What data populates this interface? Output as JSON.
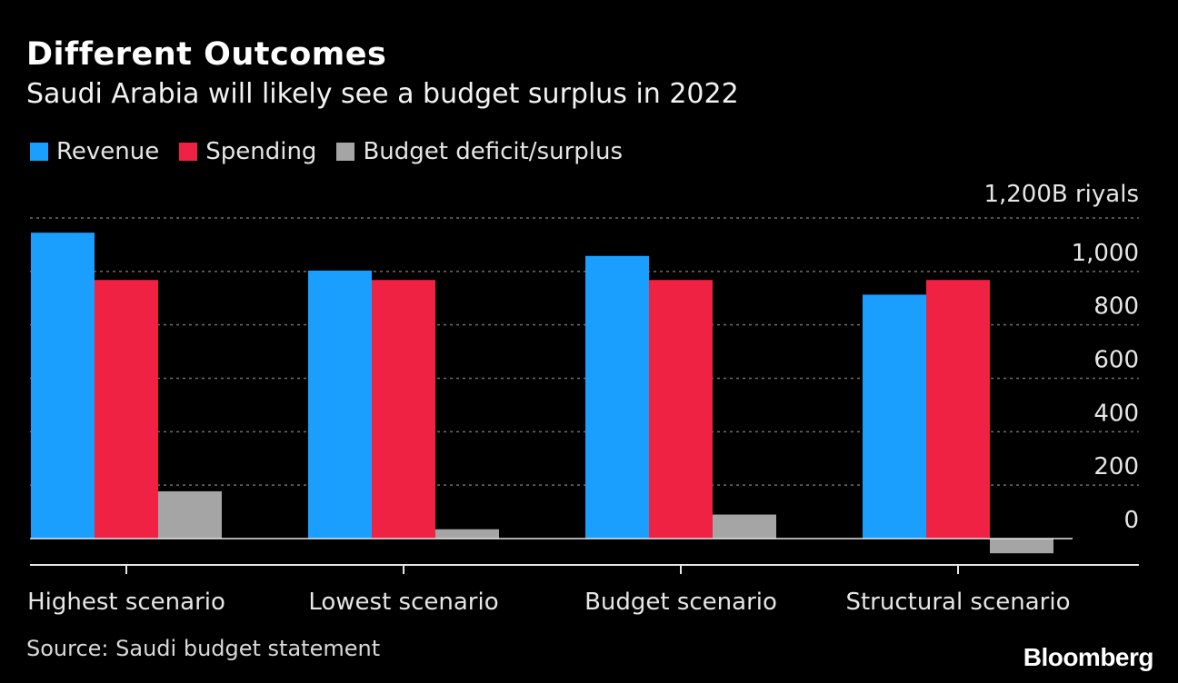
{
  "header": {
    "title": "Different Outcomes",
    "subtitle": "Saudi Arabia will likely see a budget surplus in 2022"
  },
  "legend": [
    {
      "label": "Revenue",
      "color": "#1a9fff"
    },
    {
      "label": "Spending",
      "color": "#ef2244"
    },
    {
      "label": "Budget deficit/surplus",
      "color": "#a5a5a5"
    }
  ],
  "footer": {
    "source": "Source: Saudi budget statement",
    "brand": "Bloomberg"
  },
  "chart_data": {
    "type": "bar",
    "categories": [
      "Highest scenario",
      "Lowest scenario",
      "Budget scenario",
      "Structural scenario"
    ],
    "series": [
      {
        "name": "Revenue",
        "color": "#1a9fff",
        "values": [
          1145,
          1003,
          1058,
          913
        ]
      },
      {
        "name": "Spending",
        "color": "#ef2244",
        "values": [
          968,
          968,
          968,
          968
        ]
      },
      {
        "name": "Budget deficit/surplus",
        "color": "#a5a5a5",
        "values": [
          177,
          35,
          90,
          -55
        ]
      }
    ],
    "ylim": [
      -100,
      1200
    ],
    "yticks": [
      0,
      200,
      400,
      600,
      800,
      1000,
      1200
    ],
    "ytick_labels": [
      "0",
      "200",
      "400",
      "600",
      "800",
      "1,000",
      "1,200B riyals"
    ],
    "grid": true,
    "legend_position": "top-left"
  }
}
